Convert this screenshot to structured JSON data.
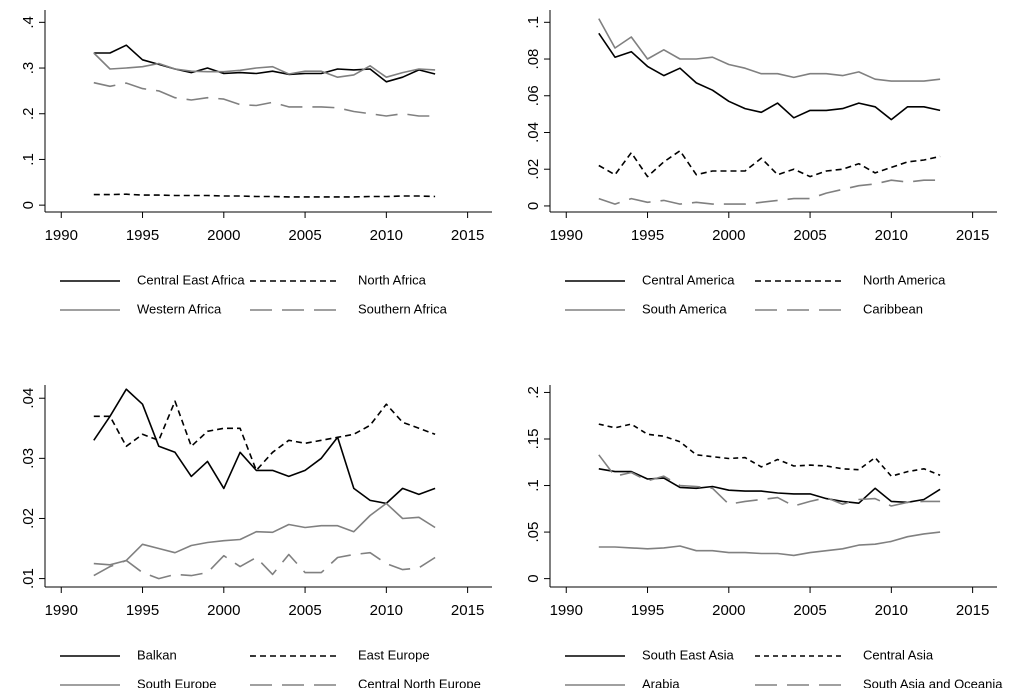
{
  "chart_data": [
    {
      "type": "line",
      "x": [
        1992,
        1993,
        1994,
        1995,
        1996,
        1997,
        1998,
        1999,
        2000,
        2001,
        2002,
        2003,
        2004,
        2005,
        2006,
        2007,
        2008,
        2009,
        2010,
        2011,
        2012,
        2013
      ],
      "xlim": [
        1989,
        2016.5
      ],
      "xticks": [
        1990,
        1995,
        2000,
        2005,
        2010,
        2015
      ],
      "ylim": [
        -0.015,
        0.427
      ],
      "yticks": [
        0,
        {
          "value": 0.1,
          "label": ".1"
        },
        {
          "value": 0.2,
          "label": ".2"
        },
        {
          "value": 0.3,
          "label": ".3"
        },
        {
          "value": 0.4,
          "label": ".4"
        }
      ],
      "series": [
        {
          "name": "Central East Africa",
          "color": "#000000",
          "dash": "solid",
          "values": [
            0.333,
            0.333,
            0.35,
            0.318,
            0.308,
            0.298,
            0.29,
            0.3,
            0.288,
            0.29,
            0.288,
            0.293,
            0.286,
            0.288,
            0.288,
            0.298,
            0.296,
            0.298,
            0.27,
            0.28,
            0.296,
            0.287
          ]
        },
        {
          "name": "North Africa",
          "color": "#000000",
          "dash": "dash",
          "values": [
            0.023,
            0.023,
            0.024,
            0.022,
            0.022,
            0.021,
            0.021,
            0.021,
            0.02,
            0.02,
            0.019,
            0.019,
            0.018,
            0.018,
            0.018,
            0.018,
            0.018,
            0.019,
            0.019,
            0.02,
            0.02,
            0.019
          ]
        },
        {
          "name": "Western Africa",
          "color": "#808080",
          "dash": "solid",
          "values": [
            0.333,
            0.298,
            0.3,
            0.303,
            0.31,
            0.298,
            0.293,
            0.292,
            0.292,
            0.295,
            0.3,
            0.303,
            0.287,
            0.293,
            0.293,
            0.28,
            0.285,
            0.305,
            0.28,
            0.29,
            0.298,
            0.296
          ]
        },
        {
          "name": "Southern Africa",
          "color": "#808080",
          "dash": "longdash",
          "values": [
            0.268,
            0.26,
            0.267,
            0.255,
            0.25,
            0.235,
            0.23,
            0.235,
            0.232,
            0.22,
            0.218,
            0.225,
            0.215,
            0.215,
            0.215,
            0.213,
            0.205,
            0.2,
            0.195,
            0.2,
            0.195,
            0.195
          ]
        }
      ]
    },
    {
      "type": "line",
      "x": [
        1992,
        1993,
        1994,
        1995,
        1996,
        1997,
        1998,
        1999,
        2000,
        2001,
        2002,
        2003,
        2004,
        2005,
        2006,
        2007,
        2008,
        2009,
        2010,
        2011,
        2012,
        2013
      ],
      "xlim": [
        1989,
        2016.5
      ],
      "xticks": [
        1990,
        1995,
        2000,
        2005,
        2010,
        2015
      ],
      "ylim": [
        -0.0033,
        0.1067
      ],
      "yticks": [
        0,
        {
          "value": 0.02,
          "label": ".02"
        },
        {
          "value": 0.04,
          "label": ".04"
        },
        {
          "value": 0.06,
          "label": ".06"
        },
        {
          "value": 0.08,
          "label": ".08"
        },
        {
          "value": 0.1,
          "label": ".1"
        }
      ],
      "series": [
        {
          "name": "Central America",
          "color": "#000000",
          "dash": "solid",
          "values": [
            0.094,
            0.081,
            0.084,
            0.076,
            0.071,
            0.075,
            0.067,
            0.063,
            0.057,
            0.053,
            0.051,
            0.056,
            0.048,
            0.052,
            0.052,
            0.053,
            0.056,
            0.054,
            0.047,
            0.054,
            0.054,
            0.052
          ]
        },
        {
          "name": "North America",
          "color": "#000000",
          "dash": "dash",
          "values": [
            0.022,
            0.017,
            0.029,
            0.016,
            0.024,
            0.03,
            0.017,
            0.019,
            0.019,
            0.019,
            0.026,
            0.017,
            0.02,
            0.016,
            0.019,
            0.02,
            0.023,
            0.018,
            0.021,
            0.024,
            0.025,
            0.027
          ]
        },
        {
          "name": "South America",
          "color": "#808080",
          "dash": "solid",
          "values": [
            0.102,
            0.086,
            0.092,
            0.08,
            0.085,
            0.08,
            0.08,
            0.081,
            0.077,
            0.075,
            0.072,
            0.072,
            0.07,
            0.072,
            0.072,
            0.071,
            0.073,
            0.069,
            0.068,
            0.068,
            0.068,
            0.069
          ]
        },
        {
          "name": "Caribbean",
          "color": "#808080",
          "dash": "longdash",
          "values": [
            0.004,
            0.001,
            0.004,
            0.002,
            0.003,
            0.001,
            0.002,
            0.001,
            0.001,
            0.001,
            0.002,
            0.003,
            0.004,
            0.004,
            0.007,
            0.009,
            0.011,
            0.012,
            0.014,
            0.013,
            0.014,
            0.014
          ]
        }
      ]
    },
    {
      "type": "line",
      "x": [
        1992,
        1993,
        1994,
        1995,
        1996,
        1997,
        1998,
        1999,
        2000,
        2001,
        2002,
        2003,
        2004,
        2005,
        2006,
        2007,
        2008,
        2009,
        2010,
        2011,
        2012,
        2013
      ],
      "xlim": [
        1989,
        2016.5
      ],
      "xticks": [
        1990,
        1995,
        2000,
        2005,
        2010,
        2015
      ],
      "ylim": [
        0.0086,
        0.0422
      ],
      "yticks": [
        {
          "value": 0.01,
          "label": ".01"
        },
        {
          "value": 0.02,
          "label": ".02"
        },
        {
          "value": 0.03,
          "label": ".03"
        },
        {
          "value": 0.04,
          "label": ".04"
        }
      ],
      "series": [
        {
          "name": "Balkan",
          "color": "#000000",
          "dash": "solid",
          "values": [
            0.033,
            0.037,
            0.0415,
            0.039,
            0.032,
            0.031,
            0.027,
            0.0295,
            0.025,
            0.031,
            0.028,
            0.028,
            0.027,
            0.028,
            0.03,
            0.0335,
            0.025,
            0.023,
            0.0225,
            0.025,
            0.024,
            0.025
          ]
        },
        {
          "name": "East Europe",
          "color": "#000000",
          "dash": "dash",
          "values": [
            0.037,
            0.037,
            0.032,
            0.034,
            0.033,
            0.0395,
            0.032,
            0.0345,
            0.035,
            0.035,
            0.028,
            0.031,
            0.033,
            0.0325,
            0.033,
            0.0335,
            0.034,
            0.0355,
            0.039,
            0.036,
            0.035,
            0.034
          ]
        },
        {
          "name": "South Europe",
          "color": "#808080",
          "dash": "solid",
          "values": [
            0.0125,
            0.0123,
            0.013,
            0.0157,
            0.015,
            0.0143,
            0.0155,
            0.016,
            0.0163,
            0.0165,
            0.0178,
            0.0177,
            0.019,
            0.0185,
            0.0188,
            0.0188,
            0.0178,
            0.0205,
            0.0225,
            0.02,
            0.0202,
            0.0185
          ]
        },
        {
          "name": "Central North Europe",
          "color": "#808080",
          "dash": "longdash",
          "values": [
            0.0105,
            0.012,
            0.013,
            0.011,
            0.01,
            0.0107,
            0.0105,
            0.011,
            0.0138,
            0.012,
            0.0135,
            0.0107,
            0.014,
            0.011,
            0.011,
            0.0135,
            0.014,
            0.0143,
            0.0125,
            0.0115,
            0.0118,
            0.0135
          ]
        }
      ]
    },
    {
      "type": "line",
      "x": [
        1992,
        1993,
        1994,
        1995,
        1996,
        1997,
        1998,
        1999,
        2000,
        2001,
        2002,
        2003,
        2004,
        2005,
        2006,
        2007,
        2008,
        2009,
        2010,
        2011,
        2012,
        2013
      ],
      "xlim": [
        1989,
        2016.5
      ],
      "xticks": [
        1990,
        1995,
        2000,
        2005,
        2010,
        2015
      ],
      "ylim": [
        -0.009,
        0.208
      ],
      "yticks": [
        0,
        {
          "value": 0.05,
          "label": ".05"
        },
        {
          "value": 0.1,
          "label": ".1"
        },
        {
          "value": 0.15,
          "label": ".15"
        },
        {
          "value": 0.2,
          "label": ".2"
        }
      ],
      "series": [
        {
          "name": "South East Asia",
          "color": "#000000",
          "dash": "solid",
          "values": [
            0.118,
            0.115,
            0.115,
            0.107,
            0.108,
            0.098,
            0.097,
            0.099,
            0.095,
            0.094,
            0.094,
            0.092,
            0.091,
            0.091,
            0.086,
            0.083,
            0.081,
            0.097,
            0.083,
            0.082,
            0.085,
            0.096
          ]
        },
        {
          "name": "Central Asia",
          "color": "#000000",
          "dash": "shortdash",
          "values": [
            0.166,
            0.162,
            0.166,
            0.155,
            0.153,
            0.147,
            0.133,
            0.131,
            0.129,
            0.13,
            0.12,
            0.128,
            0.121,
            0.122,
            0.121,
            0.118,
            0.117,
            0.13,
            0.11,
            0.115,
            0.118,
            0.111
          ]
        },
        {
          "name": "Arabia",
          "color": "#808080",
          "dash": "solid",
          "values": [
            0.034,
            0.034,
            0.033,
            0.032,
            0.033,
            0.035,
            0.03,
            0.03,
            0.028,
            0.028,
            0.027,
            0.027,
            0.025,
            0.028,
            0.03,
            0.032,
            0.036,
            0.037,
            0.04,
            0.045,
            0.048,
            0.05
          ]
        },
        {
          "name": "South Asia and Oceania",
          "color": "#808080",
          "dash": "longdash",
          "values": [
            0.133,
            0.11,
            0.114,
            0.105,
            0.11,
            0.1,
            0.099,
            0.097,
            0.08,
            0.083,
            0.085,
            0.087,
            0.078,
            0.083,
            0.087,
            0.08,
            0.085,
            0.086,
            0.078,
            0.082,
            0.083,
            0.083
          ]
        }
      ]
    }
  ]
}
